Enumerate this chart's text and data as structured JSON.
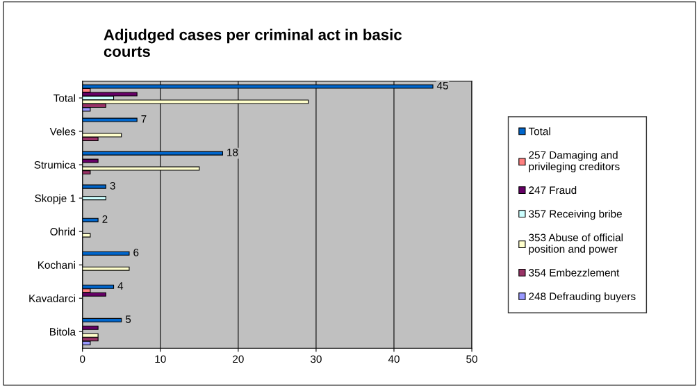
{
  "chart_data": {
    "type": "bar",
    "orientation": "horizontal",
    "title": "Adjudged cases per criminal act in basic\ncourts",
    "categories": [
      "Total",
      "Veles",
      "Strumica",
      "Skopje 1",
      "Ohrid",
      "Kochani",
      "Kavadarci",
      "Bitola"
    ],
    "series": [
      {
        "name": "Total",
        "color": "#0066cc",
        "values": [
          45,
          7,
          18,
          3,
          2,
          6,
          4,
          5
        ],
        "value_labels": [
          "45",
          "7",
          "18",
          "3",
          "2",
          "6",
          "4",
          "5"
        ]
      },
      {
        "name": "257 Damaging and privileging creditors",
        "color": "#ff8080",
        "values": [
          1,
          0,
          0,
          0,
          0,
          0,
          1,
          0
        ]
      },
      {
        "name": "247 Fraud",
        "color": "#660066",
        "values": [
          7,
          0,
          2,
          0,
          0,
          0,
          3,
          2
        ]
      },
      {
        "name": "357 Receiving bribe",
        "color": "#ccffff",
        "values": [
          4,
          0,
          0,
          3,
          0,
          0,
          0,
          0
        ]
      },
      {
        "name": "353 Abuse of official position and power",
        "color": "#ffffcc",
        "values": [
          29,
          5,
          15,
          0,
          1,
          6,
          0,
          2
        ]
      },
      {
        "name": "354 Embezzlement",
        "color": "#993366",
        "values": [
          3,
          2,
          1,
          0,
          0,
          0,
          0,
          2
        ]
      },
      {
        "name": "248 Defrauding buyers",
        "color": "#9999ff",
        "values": [
          1,
          0,
          0,
          0,
          0,
          0,
          0,
          1
        ]
      }
    ],
    "xlim": [
      0,
      50
    ],
    "xticks": [
      0,
      10,
      20,
      30,
      40,
      50
    ],
    "grid": "x",
    "legend": "right"
  }
}
